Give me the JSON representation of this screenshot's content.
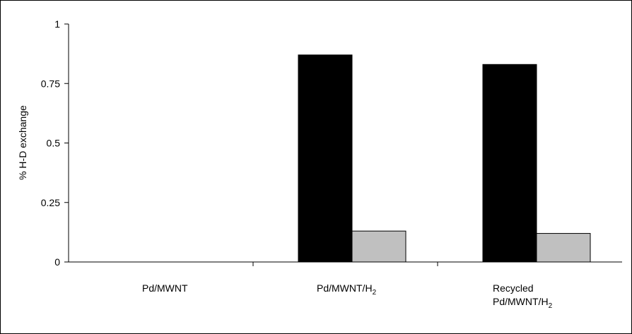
{
  "chart_data": {
    "type": "bar",
    "ylabel": "% H-D exchange",
    "ylim": [
      0,
      1
    ],
    "yticks": [
      "0",
      "0.25",
      "0.5",
      "0.75",
      "1"
    ],
    "categories": [
      {
        "lines": [
          {
            "text": "Pd/MWNT",
            "sub": ""
          }
        ]
      },
      {
        "lines": [
          {
            "text": "Pd/MWNT/H",
            "sub": "2"
          }
        ]
      },
      {
        "lines": [
          {
            "text": "Recycled",
            "sub": ""
          },
          {
            "text": "Pd/MWNT/H",
            "sub": "2"
          }
        ]
      }
    ],
    "series": [
      {
        "color": "#000000",
        "values": [
          0,
          0.87,
          0.83
        ]
      },
      {
        "color": "#c0c0c0",
        "values": [
          0,
          0.13,
          0.12
        ]
      }
    ],
    "grid": false,
    "legend": "none"
  }
}
